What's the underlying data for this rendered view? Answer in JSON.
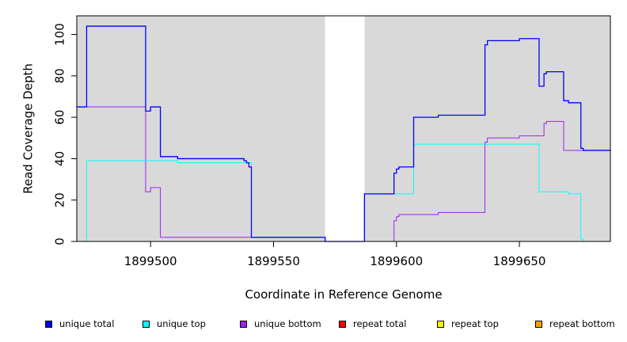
{
  "chart_data": {
    "type": "line",
    "title": "",
    "xlabel": "Coordinate in Reference Genome",
    "ylabel": "Read Coverage Depth",
    "xlim": [
      1899470,
      1899687
    ],
    "ylim": [
      0,
      109
    ],
    "x_ticks": [
      1899500,
      1899550,
      1899600,
      1899650
    ],
    "y_ticks": [
      0,
      20,
      40,
      60,
      80,
      100
    ],
    "shaded_regions": [
      [
        1899470,
        1899571
      ],
      [
        1899587,
        1899687
      ]
    ],
    "gap_region": [
      1899571,
      1899587
    ],
    "legend_position": "bottom",
    "series": [
      {
        "name": "unique total",
        "color": "#0000ff",
        "steps": [
          [
            1899470,
            65
          ],
          [
            1899474,
            104
          ],
          [
            1899498,
            63
          ],
          [
            1899500,
            65
          ],
          [
            1899504,
            41
          ],
          [
            1899511,
            40
          ],
          [
            1899538,
            39
          ],
          [
            1899539,
            38
          ],
          [
            1899540,
            36
          ],
          [
            1899541,
            2
          ],
          [
            1899571,
            0
          ],
          [
            1899587,
            23
          ],
          [
            1899599,
            33
          ],
          [
            1899600,
            35
          ],
          [
            1899601,
            36
          ],
          [
            1899607,
            60
          ],
          [
            1899617,
            61
          ],
          [
            1899636,
            95
          ],
          [
            1899637,
            97
          ],
          [
            1899650,
            98
          ],
          [
            1899658,
            75
          ],
          [
            1899660,
            81
          ],
          [
            1899661,
            82
          ],
          [
            1899668,
            68
          ],
          [
            1899670,
            67
          ],
          [
            1899675,
            45
          ],
          [
            1899676,
            44
          ],
          [
            1899687,
            44
          ]
        ]
      },
      {
        "name": "unique top",
        "color": "#00ffff",
        "steps": [
          [
            1899470,
            0
          ],
          [
            1899474,
            39
          ],
          [
            1899511,
            38
          ],
          [
            1899541,
            2
          ],
          [
            1899571,
            0
          ],
          [
            1899587,
            23
          ],
          [
            1899607,
            47
          ],
          [
            1899658,
            24
          ],
          [
            1899670,
            23
          ],
          [
            1899675,
            1
          ],
          [
            1899676,
            0
          ],
          [
            1899687,
            0
          ]
        ]
      },
      {
        "name": "unique bottom",
        "color": "#a020f0",
        "steps": [
          [
            1899470,
            65
          ],
          [
            1899498,
            24
          ],
          [
            1899500,
            26
          ],
          [
            1899504,
            2
          ],
          [
            1899571,
            0
          ],
          [
            1899599,
            10
          ],
          [
            1899600,
            12
          ],
          [
            1899601,
            13
          ],
          [
            1899617,
            14
          ],
          [
            1899636,
            48
          ],
          [
            1899637,
            50
          ],
          [
            1899650,
            51
          ],
          [
            1899660,
            57
          ],
          [
            1899661,
            58
          ],
          [
            1899668,
            44
          ],
          [
            1899687,
            44
          ]
        ]
      },
      {
        "name": "repeat total",
        "color": "#ff0000",
        "steps": [
          [
            1899470,
            0
          ],
          [
            1899687,
            0
          ]
        ]
      },
      {
        "name": "repeat top",
        "color": "#ffff00",
        "steps": [
          [
            1899470,
            0
          ],
          [
            1899687,
            0
          ]
        ]
      },
      {
        "name": "repeat bottom",
        "color": "#ffa500",
        "steps": [
          [
            1899470,
            0
          ],
          [
            1899687,
            0
          ]
        ]
      }
    ]
  }
}
